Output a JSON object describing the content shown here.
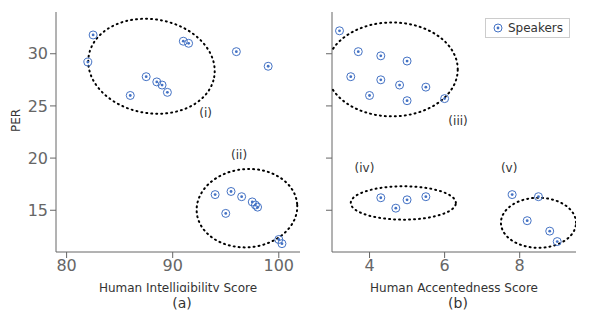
{
  "chart_data": [
    {
      "type": "scatter",
      "xlabel": "Human Intelligibility Score",
      "ylabel": "PER",
      "caption": "(a)",
      "xlim": [
        79,
        102
      ],
      "ylim": [
        11,
        34
      ],
      "xticks": [
        80,
        90,
        100
      ],
      "yticks": [
        15,
        20,
        25,
        30
      ],
      "grid": false,
      "legend": false,
      "series": [
        {
          "color": "#4472C4",
          "marker": "circle",
          "x": [
            82,
            82.5,
            87.5,
            88.5,
            89,
            89.5,
            91,
            91.5,
            86,
            96,
            99,
            94,
            95.5,
            96.5,
            97.5,
            97.8,
            98.0,
            95,
            100,
            100.3
          ],
          "y": [
            29.2,
            31.8,
            27.8,
            27.3,
            27.0,
            26.3,
            31.2,
            31.0,
            26.0,
            30.2,
            28.8,
            16.5,
            16.8,
            16.3,
            15.8,
            15.5,
            15.3,
            14.7,
            12.2,
            11.8
          ]
        }
      ],
      "ellipses": [
        {
          "label": "(i)",
          "cx": 88.0,
          "cy": 28.8,
          "w": 12.0,
          "h": 9.0,
          "angle": -10,
          "lx": 92.5,
          "ly": 24.8,
          "line_style": "dotted"
        },
        {
          "label": "(ii)",
          "cx": 97.0,
          "cy": 15.2,
          "w": 9.5,
          "h": 7.5,
          "angle": 5,
          "lx": 95.5,
          "ly": 20.8,
          "line_style": "dotted"
        }
      ]
    },
    {
      "type": "scatter",
      "xlabel": "Human Accentedness Score",
      "caption": "(b)",
      "xlim": [
        3.0,
        9.5
      ],
      "ylim": [
        11,
        34
      ],
      "xticks": [
        4,
        6,
        8
      ],
      "yticks": [
        15,
        20,
        25,
        30
      ],
      "grid": false,
      "legend": "upper right",
      "tick_labels": "x",
      "series": [
        {
          "name": "Speakers",
          "color": "#4472C4",
          "marker": "circle",
          "x": [
            3.2,
            3.7,
            4.3,
            5.0,
            3.5,
            4.3,
            4.8,
            5.5,
            4.0,
            5.0,
            6.0,
            4.3,
            5.0,
            5.5,
            4.7,
            7.8,
            8.5,
            8.2,
            8.8,
            9.0
          ],
          "y": [
            32.2,
            30.2,
            29.8,
            29.3,
            27.8,
            27.5,
            27.0,
            26.8,
            26.0,
            25.5,
            25.7,
            16.2,
            16.0,
            16.3,
            15.2,
            16.5,
            16.3,
            14.0,
            13.0,
            12.0
          ]
        }
      ],
      "ellipses": [
        {
          "label": "(iii)",
          "cx": 4.6,
          "cy": 28.5,
          "w": 3.5,
          "h": 9.0,
          "angle": 0,
          "lx": 6.1,
          "ly": 24.0,
          "line_style": "dotted"
        },
        {
          "label": "(iv)",
          "cx": 4.9,
          "cy": 15.7,
          "w": 2.8,
          "h": 3.2,
          "angle": 0,
          "lx": 3.6,
          "ly": 19.5,
          "line_style": "dotted"
        },
        {
          "label": "(v)",
          "cx": 8.5,
          "cy": 13.8,
          "w": 2.0,
          "h": 4.8,
          "angle": 0,
          "lx": 7.5,
          "ly": 19.5,
          "line_style": "dotted"
        }
      ]
    }
  ]
}
